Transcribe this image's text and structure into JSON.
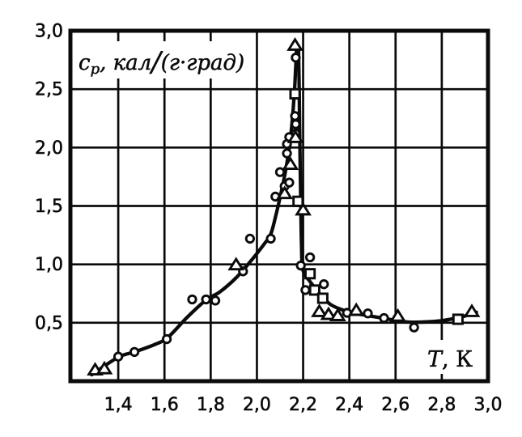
{
  "figure": {
    "background": "#ffffff",
    "ink": "#0b0b0b"
  },
  "chart_data": {
    "type": "line",
    "title": "",
    "xlabel": "T, К",
    "ylabel": "cp, кал/(г·град)",
    "xlabel_parts": {
      "variable": "T",
      "separator": ", ",
      "unit": "К"
    },
    "ylabel_parts": {
      "variable": "c",
      "subscript": "p",
      "separator": ", ",
      "unit_numerator": "кал",
      "fraction_slash": "/",
      "unit_denominator": "(г·град)"
    },
    "xlim": [
      1.193,
      3.0
    ],
    "ylim": [
      0,
      3.0
    ],
    "x_ticks": [
      1.4,
      1.6,
      1.8,
      2.0,
      2.2,
      2.4,
      2.6,
      2.8,
      3.0
    ],
    "x_tick_labels": [
      "1,4",
      "1,6",
      "1,8",
      "2,0",
      "2,2",
      "2,4",
      "2,6",
      "2,8",
      "3,0"
    ],
    "y_ticks": [
      0.5,
      1.0,
      1.5,
      2.0,
      2.5,
      3.0
    ],
    "y_tick_labels": [
      "0,5",
      "1,0",
      "1,5",
      "2,0",
      "2,5",
      "3,0"
    ],
    "grid": true,
    "legend_position": "none",
    "series": [
      {
        "name": "circle-markers",
        "marker": "circle",
        "points": [
          [
            1.4,
            0.21
          ],
          [
            1.47,
            0.25
          ],
          [
            1.61,
            0.36
          ],
          [
            1.72,
            0.7
          ],
          [
            1.78,
            0.7
          ],
          [
            1.82,
            0.69
          ],
          [
            1.94,
            0.94
          ],
          [
            1.97,
            1.22
          ],
          [
            2.06,
            1.22
          ],
          [
            2.08,
            1.58
          ],
          [
            2.1,
            1.79
          ],
          [
            2.12,
            1.67
          ],
          [
            2.14,
            1.7
          ],
          [
            2.13,
            1.95
          ],
          [
            2.13,
            2.03
          ],
          [
            2.14,
            2.09
          ],
          [
            2.168,
            2.12
          ],
          [
            2.168,
            2.2
          ],
          [
            2.165,
            2.27
          ],
          [
            2.168,
            2.77
          ],
          [
            2.19,
            0.99
          ],
          [
            2.21,
            0.78
          ],
          [
            2.23,
            1.06
          ],
          [
            2.29,
            0.83
          ],
          [
            2.39,
            0.585
          ],
          [
            2.48,
            0.58
          ],
          [
            2.55,
            0.54
          ],
          [
            2.68,
            0.46
          ]
        ]
      },
      {
        "name": "triangle-markers",
        "marker": "triangle",
        "points": [
          [
            1.3,
            0.09
          ],
          [
            1.34,
            0.1
          ],
          [
            1.91,
            0.99
          ],
          [
            2.12,
            1.6
          ],
          [
            2.145,
            1.85
          ],
          [
            2.167,
            2.08
          ],
          [
            2.165,
            2.87
          ],
          [
            2.2,
            1.46
          ],
          [
            2.27,
            0.59
          ],
          [
            2.31,
            0.565
          ],
          [
            2.35,
            0.555
          ],
          [
            2.43,
            0.6
          ],
          [
            2.61,
            0.55
          ],
          [
            2.93,
            0.59
          ]
        ]
      },
      {
        "name": "square-markers",
        "marker": "square",
        "points": [
          [
            2.165,
            2.46
          ],
          [
            2.178,
            1.54
          ],
          [
            2.23,
            0.92
          ],
          [
            2.25,
            0.78
          ],
          [
            2.285,
            0.71
          ],
          [
            2.87,
            0.53
          ]
        ]
      }
    ],
    "curve_segments": [
      {
        "name": "below-lambda-branch",
        "points": [
          [
            1.285,
            0.055
          ],
          [
            1.4,
            0.205
          ],
          [
            1.47,
            0.25
          ],
          [
            1.56,
            0.315
          ],
          [
            1.615,
            0.375
          ],
          [
            1.7,
            0.55
          ],
          [
            1.78,
            0.695
          ],
          [
            1.84,
            0.765
          ],
          [
            1.91,
            0.885
          ],
          [
            1.97,
            1.02
          ],
          [
            2.03,
            1.17
          ],
          [
            2.06,
            1.26
          ],
          [
            2.082,
            1.42
          ],
          [
            2.103,
            1.6
          ],
          [
            2.122,
            1.78
          ],
          [
            2.138,
            1.97
          ],
          [
            2.149,
            2.15
          ],
          [
            2.157,
            2.33
          ],
          [
            2.163,
            2.5
          ],
          [
            2.167,
            2.65
          ],
          [
            2.17,
            2.78
          ],
          [
            2.172,
            2.87
          ]
        ]
      },
      {
        "name": "above-lambda-branch",
        "points": [
          [
            2.18,
            2.87
          ],
          [
            2.183,
            2.5
          ],
          [
            2.186,
            2.0
          ],
          [
            2.19,
            1.5
          ],
          [
            2.193,
            1.15
          ],
          [
            2.197,
            0.97
          ],
          [
            2.212,
            0.9
          ],
          [
            2.227,
            0.86
          ],
          [
            2.258,
            0.78
          ],
          [
            2.289,
            0.71
          ],
          [
            2.32,
            0.655
          ],
          [
            2.363,
            0.615
          ],
          [
            2.41,
            0.585
          ],
          [
            2.484,
            0.56
          ],
          [
            2.543,
            0.54
          ],
          [
            2.6,
            0.52
          ],
          [
            2.665,
            0.505
          ],
          [
            2.787,
            0.515
          ],
          [
            2.885,
            0.55
          ],
          [
            2.95,
            0.59
          ]
        ]
      }
    ]
  }
}
